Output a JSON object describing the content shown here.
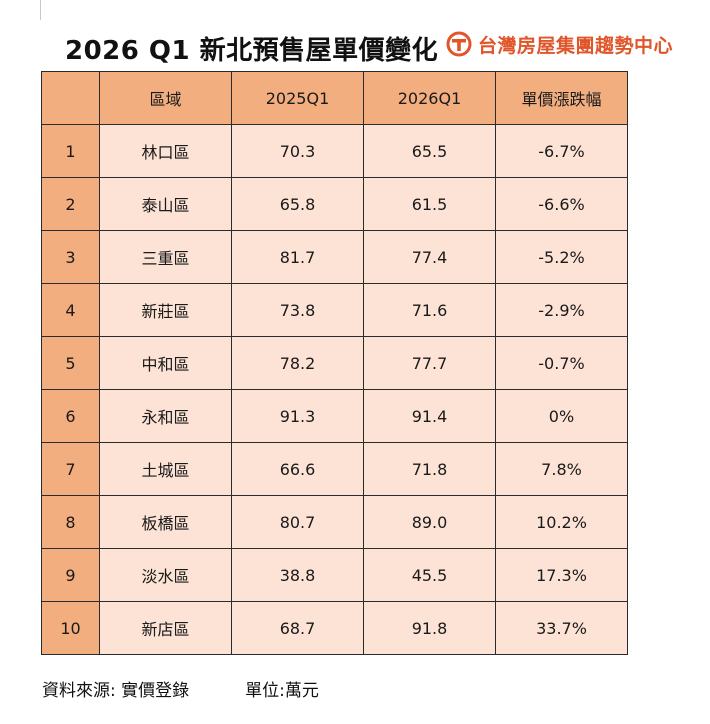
{
  "title": "2026 Q1 新北預售屋單價變化",
  "brand": {
    "name": "台灣房屋集團趨勢中心",
    "logo_icon": "taiwan-realty-logo"
  },
  "colors": {
    "header_bg": "#f3ae80",
    "cell_bg": "#fce3d5",
    "decline": "#3d5aa8",
    "surge": "#c0302a",
    "brand": "#e0552a"
  },
  "table": {
    "headers": [
      "",
      "區域",
      "2025Q1",
      "2026Q1",
      "單價漲跌幅"
    ],
    "rows": [
      {
        "no": "1",
        "district": "林口區",
        "q2025": "70.3",
        "q2026": "65.5",
        "change": "-6.7%"
      },
      {
        "no": "2",
        "district": "泰山區",
        "q2025": "65.8",
        "q2026": "61.5",
        "change": "-6.6%"
      },
      {
        "no": "3",
        "district": "三重區",
        "q2025": "81.7",
        "q2026": "77.4",
        "change": "-5.2%"
      },
      {
        "no": "4",
        "district": "新莊區",
        "q2025": "73.8",
        "q2026": "71.6",
        "change": "-2.9%"
      },
      {
        "no": "5",
        "district": "中和區",
        "q2025": "78.2",
        "q2026": "77.7",
        "change": "-0.7%"
      },
      {
        "no": "6",
        "district": "永和區",
        "q2025": "91.3",
        "q2026": "91.4",
        "change": "0%"
      },
      {
        "no": "7",
        "district": "土城區",
        "q2025": "66.6",
        "q2026": "71.8",
        "change": "7.8%"
      },
      {
        "no": "8",
        "district": "板橋區",
        "q2025": "80.7",
        "q2026": "89.0",
        "change": "10.2%"
      },
      {
        "no": "9",
        "district": "淡水區",
        "q2025": "38.8",
        "q2026": "45.5",
        "change": "17.3%"
      },
      {
        "no": "10",
        "district": "新店區",
        "q2025": "68.7",
        "q2026": "91.8",
        "change": "33.7%"
      }
    ]
  },
  "footer": {
    "source": "資料來源:  實價登錄",
    "unit": "單位:萬元"
  }
}
